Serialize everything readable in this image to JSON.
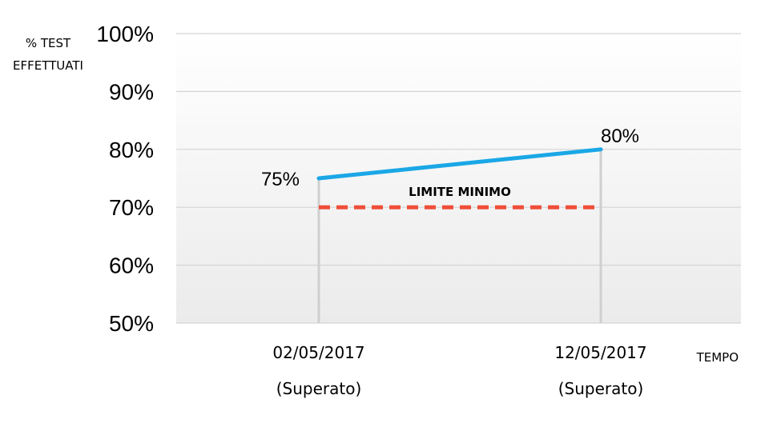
{
  "chart_data": {
    "type": "line",
    "ylabel_lines": [
      "% TEST",
      "EFFETTUATI"
    ],
    "xlabel": "TEMPO",
    "categories": [
      "02/05/2017",
      "12/05/2017"
    ],
    "category_sublabels": [
      "(Superato)",
      "(Superato)"
    ],
    "yticks": [
      "50%",
      "60%",
      "70%",
      "80%",
      "90%",
      "100%"
    ],
    "ylim": [
      50,
      100
    ],
    "series": [
      {
        "values": [
          75,
          80
        ],
        "data_labels": [
          "75%",
          "80%"
        ],
        "color": "#1aa7e6"
      }
    ],
    "threshold": {
      "label": "LIMITE MINIMO",
      "value": 70,
      "color": "#f04e3a"
    },
    "grid": true
  }
}
